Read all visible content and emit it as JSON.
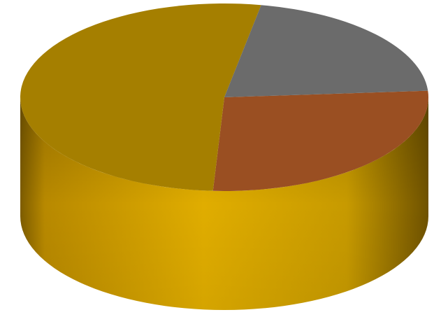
{
  "chart_data": {
    "type": "pie",
    "variant": "3d",
    "start_angle_deg": -4,
    "direction": "clockwise",
    "slices": [
      {
        "value": 27,
        "color": "#9a4f22"
      },
      {
        "value": 52,
        "color": "#a57f00"
      },
      {
        "value": 21,
        "color": "#6b6b6b"
      }
    ],
    "colors": {
      "side_base": "#d8a600"
    }
  }
}
